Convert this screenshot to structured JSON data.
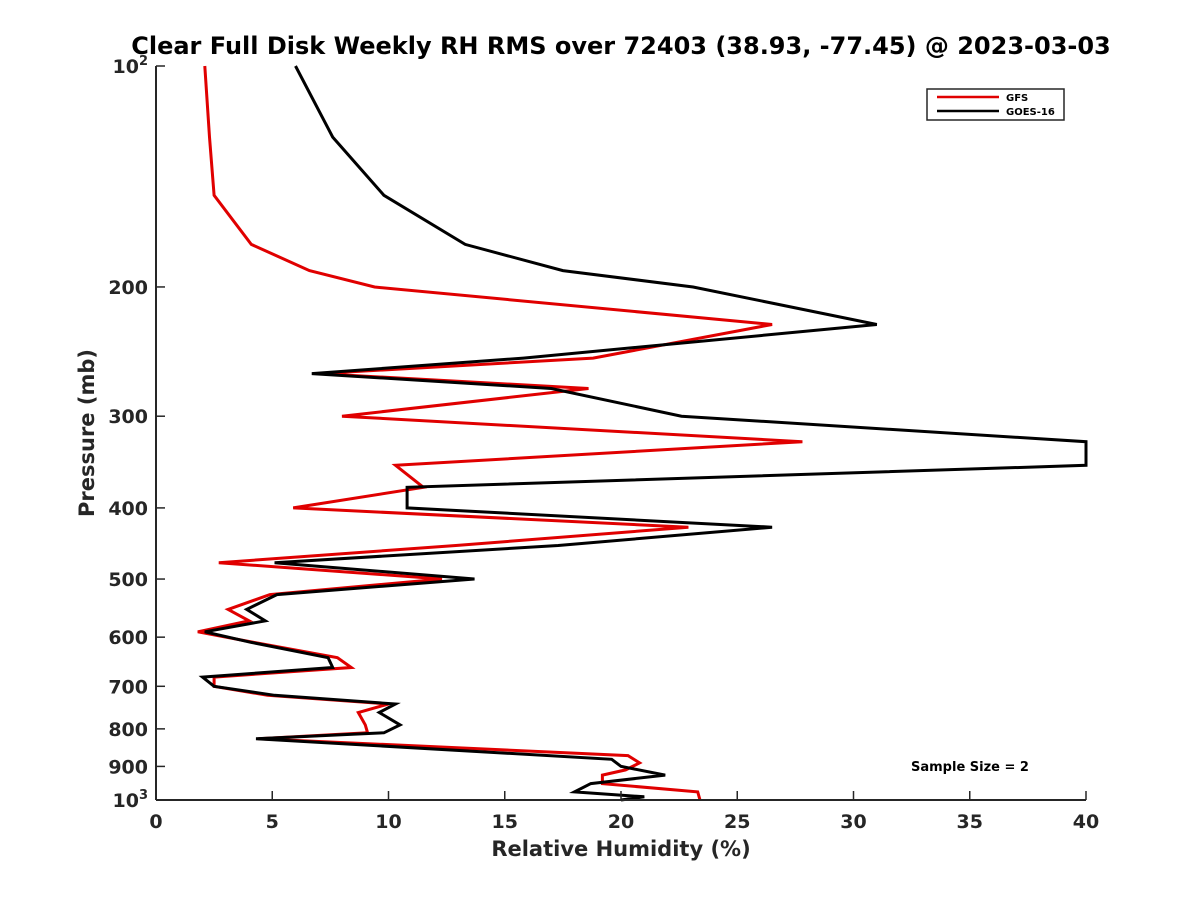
{
  "chart_data": {
    "type": "line",
    "title": "Clear Full Disk Weekly RH RMS over 72403 (38.93, -77.45) @ 2023-03-03",
    "xlabel": "Relative Humidity (%)",
    "ylabel": "Pressure (mb)",
    "xlim": [
      0,
      40
    ],
    "ylim": [
      100,
      1000
    ],
    "y_scale": "log",
    "y_reversed": true,
    "x_ticks": [
      0,
      5,
      10,
      15,
      20,
      25,
      30,
      35,
      40
    ],
    "y_ticks": [
      {
        "value": 100,
        "label": "10",
        "exp": "2"
      },
      {
        "value": 200,
        "label": "200"
      },
      {
        "value": 300,
        "label": "300"
      },
      {
        "value": 400,
        "label": "400"
      },
      {
        "value": 500,
        "label": "500"
      },
      {
        "value": 600,
        "label": "600"
      },
      {
        "value": 700,
        "label": "700"
      },
      {
        "value": 800,
        "label": "800"
      },
      {
        "value": 900,
        "label": "900"
      },
      {
        "value": 1000,
        "label": "10",
        "exp": "3"
      }
    ],
    "grid": false,
    "legend_position": "top-right",
    "annotation": "Sample Size = 2",
    "series": [
      {
        "name": "GFS",
        "color": "#e00000",
        "points": [
          [
            2.1,
            100
          ],
          [
            2.3,
            125
          ],
          [
            2.5,
            150
          ],
          [
            4.1,
            175
          ],
          [
            6.6,
            190
          ],
          [
            9.4,
            200
          ],
          [
            26.5,
            225
          ],
          [
            18.8,
            250
          ],
          [
            7.0,
            262.5
          ],
          [
            18.6,
            275
          ],
          [
            8.0,
            300
          ],
          [
            27.8,
            325
          ],
          [
            10.3,
            350
          ],
          [
            11.5,
            375
          ],
          [
            5.9,
            400
          ],
          [
            22.9,
            425
          ],
          [
            12.9,
            450
          ],
          [
            2.7,
            475
          ],
          [
            12.3,
            500
          ],
          [
            4.9,
            525
          ],
          [
            3.1,
            550
          ],
          [
            4.0,
            570
          ],
          [
            1.8,
            590
          ],
          [
            4.2,
            610
          ],
          [
            7.8,
            640
          ],
          [
            8.4,
            660
          ],
          [
            2.5,
            680
          ],
          [
            2.5,
            700
          ],
          [
            4.8,
            720
          ],
          [
            10.0,
            740
          ],
          [
            8.7,
            760
          ],
          [
            9.0,
            790
          ],
          [
            9.1,
            810
          ],
          [
            4.4,
            825
          ],
          [
            20.3,
            870
          ],
          [
            20.8,
            890
          ],
          [
            20.2,
            910
          ],
          [
            19.2,
            925
          ],
          [
            19.2,
            950
          ],
          [
            23.3,
            975
          ],
          [
            23.4,
            1000
          ]
        ]
      },
      {
        "name": "GOES-16",
        "color": "#000000",
        "points": [
          [
            6.0,
            100
          ],
          [
            7.6,
            125
          ],
          [
            9.8,
            150
          ],
          [
            13.3,
            175
          ],
          [
            17.5,
            190
          ],
          [
            23.1,
            200
          ],
          [
            31.0,
            225
          ],
          [
            15.8,
            250
          ],
          [
            6.7,
            262.5
          ],
          [
            17.0,
            275
          ],
          [
            22.6,
            300
          ],
          [
            40.0,
            325
          ],
          [
            40.0,
            350
          ],
          [
            10.8,
            375
          ],
          [
            10.8,
            400
          ],
          [
            26.5,
            425
          ],
          [
            17.3,
            450
          ],
          [
            5.1,
            475
          ],
          [
            13.7,
            500
          ],
          [
            5.2,
            525
          ],
          [
            3.9,
            550
          ],
          [
            4.7,
            570
          ],
          [
            2.1,
            590
          ],
          [
            4.1,
            610
          ],
          [
            7.4,
            640
          ],
          [
            7.6,
            660
          ],
          [
            2.0,
            680
          ],
          [
            2.5,
            700
          ],
          [
            5.1,
            720
          ],
          [
            10.3,
            740
          ],
          [
            9.6,
            760
          ],
          [
            10.5,
            790
          ],
          [
            9.8,
            810
          ],
          [
            4.3,
            825
          ],
          [
            19.6,
            880
          ],
          [
            20.0,
            900
          ],
          [
            21.9,
            925
          ],
          [
            18.7,
            950
          ],
          [
            18.0,
            975
          ],
          [
            21.0,
            990
          ],
          [
            20.0,
            1000
          ]
        ]
      }
    ]
  }
}
